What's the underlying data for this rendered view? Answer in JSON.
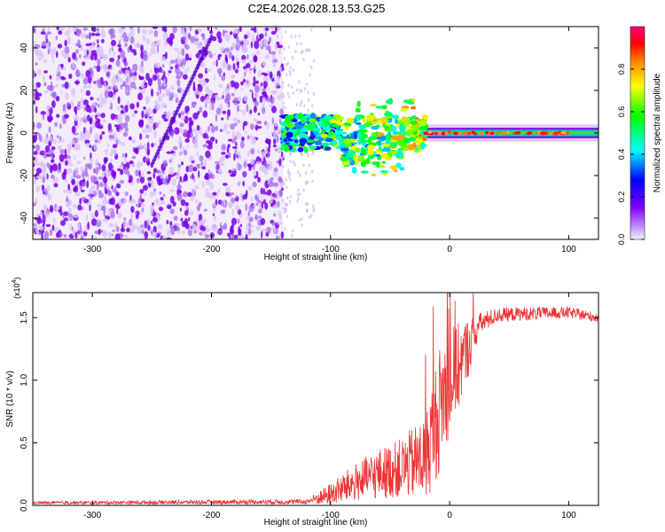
{
  "title": "C2E4.2026.028.13.53.G25",
  "chart_data": [
    {
      "type": "heatmap",
      "name": "spectrogram",
      "xlabel": "Height of straight line (km)",
      "ylabel": "Frequency (Hz)",
      "xlim": [
        -350,
        125
      ],
      "ylim": [
        -50,
        50
      ],
      "xticks": [
        -300,
        -200,
        -100,
        0,
        100
      ],
      "yticks": [
        -40,
        -20,
        0,
        20,
        40
      ],
      "noise_region_end_km": -140,
      "signal_center_hz": 0,
      "colorbar": {
        "label": "Normalized spectral amplitude",
        "range": [
          0.0,
          1.0
        ],
        "ticks": [
          0.0,
          0.2,
          0.4,
          0.6,
          0.8
        ],
        "tick_labels": [
          "0.0",
          "0.2",
          "0.4",
          "0.6",
          "0.8"
        ],
        "colormap": [
          "#f4f0fa",
          "#8000ff",
          "#0000ff",
          "#00ffff",
          "#00ff00",
          "#ffff00",
          "#ff8000",
          "#ff0000",
          "#ff0080"
        ]
      }
    },
    {
      "type": "line",
      "name": "snr",
      "xlabel": "Height of straight line (km)",
      "ylabel": "SNR (10 * v/v)",
      "scale_label": "(x10",
      "scale_exp": "4",
      "scale_close": ")",
      "xlim": [
        -350,
        125
      ],
      "ylim": [
        0,
        17000
      ],
      "xticks": [
        -300,
        -200,
        -100,
        0,
        100
      ],
      "yticks": [
        0,
        5000,
        10000,
        15000
      ],
      "ytick_labels": [
        "0.0",
        "0.5",
        "1.0",
        "1.5"
      ],
      "color": "#ee3333",
      "trend": [
        {
          "x": -350,
          "y": 200
        },
        {
          "x": -120,
          "y": 300
        },
        {
          "x": -100,
          "y": 900
        },
        {
          "x": -80,
          "y": 1800
        },
        {
          "x": -60,
          "y": 2500
        },
        {
          "x": -40,
          "y": 3000
        },
        {
          "x": -20,
          "y": 3800
        },
        {
          "x": -12,
          "y": 6500
        },
        {
          "x": -5,
          "y": 9000
        },
        {
          "x": 10,
          "y": 11500
        },
        {
          "x": 25,
          "y": 14500
        },
        {
          "x": 40,
          "y": 15200
        },
        {
          "x": 60,
          "y": 15300
        },
        {
          "x": 100,
          "y": 15400
        },
        {
          "x": 125,
          "y": 15000
        }
      ],
      "noise": [
        {
          "x": -350,
          "y": 120
        },
        {
          "x": -120,
          "y": 200
        },
        {
          "x": -100,
          "y": 900
        },
        {
          "x": -80,
          "y": 1500
        },
        {
          "x": -60,
          "y": 2000
        },
        {
          "x": -40,
          "y": 2400
        },
        {
          "x": -20,
          "y": 3500
        },
        {
          "x": -10,
          "y": 5000
        },
        {
          "x": 0,
          "y": 4500
        },
        {
          "x": 15,
          "y": 2500
        },
        {
          "x": 25,
          "y": 900
        },
        {
          "x": 40,
          "y": 600
        },
        {
          "x": 125,
          "y": 400
        }
      ]
    }
  ]
}
